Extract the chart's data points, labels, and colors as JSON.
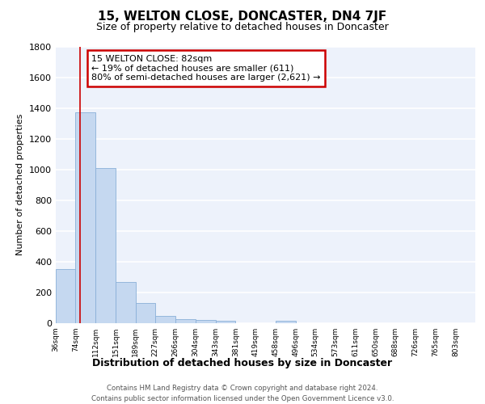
{
  "title": "15, WELTON CLOSE, DONCASTER, DN4 7JF",
  "subtitle": "Size of property relative to detached houses in Doncaster",
  "xlabel": "Distribution of detached houses by size in Doncaster",
  "ylabel": "Number of detached properties",
  "footnote1": "Contains HM Land Registry data © Crown copyright and database right 2024.",
  "footnote2": "Contains public sector information licensed under the Open Government Licence v3.0.",
  "categories": [
    "36sqm",
    "74sqm",
    "112sqm",
    "151sqm",
    "189sqm",
    "227sqm",
    "266sqm",
    "304sqm",
    "343sqm",
    "381sqm",
    "419sqm",
    "458sqm",
    "496sqm",
    "534sqm",
    "573sqm",
    "611sqm",
    "650sqm",
    "688sqm",
    "726sqm",
    "765sqm",
    "803sqm"
  ],
  "bin_edges": [
    36,
    74,
    112,
    151,
    189,
    227,
    266,
    304,
    343,
    381,
    419,
    458,
    496,
    534,
    573,
    611,
    650,
    688,
    726,
    765,
    803,
    841
  ],
  "values": [
    350,
    1370,
    1010,
    270,
    130,
    45,
    28,
    20,
    15,
    1,
    1,
    15,
    1,
    1,
    1,
    1,
    1,
    1,
    1,
    1,
    1
  ],
  "bar_color": "#c5d8f0",
  "annotation_title": "15 WELTON CLOSE: 82sqm",
  "annotation_line1": "← 19% of detached houses are smaller (611)",
  "annotation_line2": "80% of semi-detached houses are larger (2,621) →",
  "annotation_box_color": "#cc0000",
  "property_line_xval": 82,
  "ylim": [
    0,
    1800
  ],
  "yticks": [
    0,
    200,
    400,
    600,
    800,
    1000,
    1200,
    1400,
    1600,
    1800
  ],
  "background_color": "#edf2fb",
  "grid_color": "#ffffff",
  "title_fontsize": 11,
  "subtitle_fontsize": 9
}
